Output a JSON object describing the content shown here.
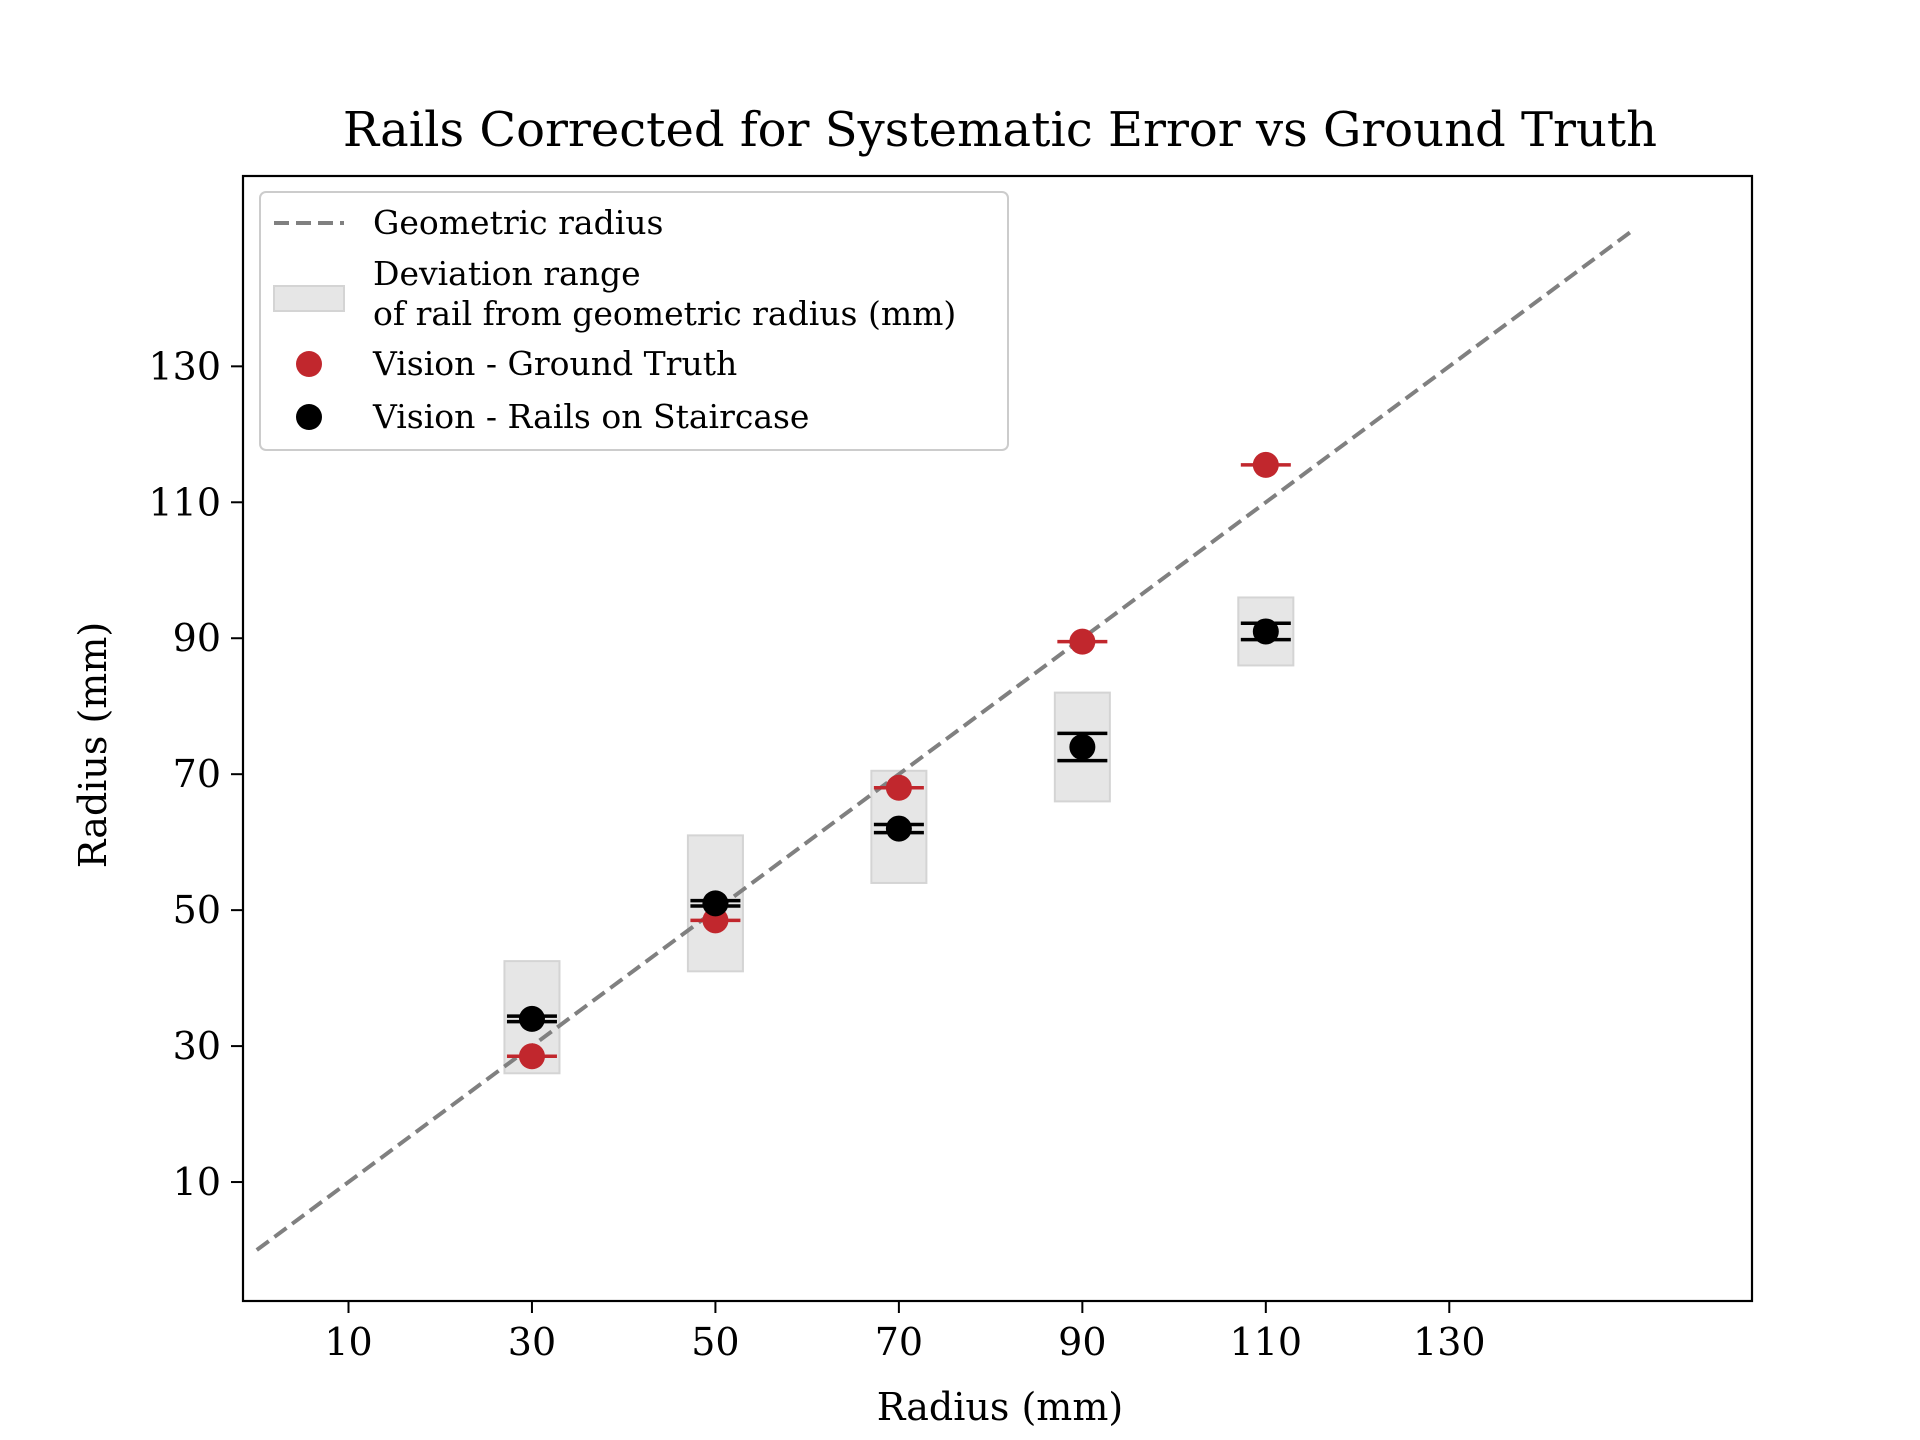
{
  "chart_data": {
    "type": "scatter",
    "title": "Rails Corrected for Systematic Error vs Ground Truth",
    "xlabel": "Radius (mm)",
    "ylabel": "Radius (mm)",
    "xlim": [
      -1.5,
      163
    ],
    "ylim": [
      -7.5,
      158
    ],
    "xticks": [
      10,
      30,
      50,
      70,
      90,
      110,
      130
    ],
    "yticks": [
      10,
      30,
      50,
      70,
      90,
      110,
      130
    ],
    "grid": false,
    "legend_position": "top-left",
    "geometric_line": {
      "name": "Geometric radius",
      "x": [
        0,
        150
      ],
      "y": [
        0,
        150
      ],
      "color": "#808080",
      "style": "dashed"
    },
    "deviation_range": {
      "name": "Deviation range\nof rail from geometric radius (mm)",
      "legend_lines": [
        "Deviation range",
        "of rail from geometric radius (mm)"
      ],
      "color": "#e6e6e6",
      "boxes": [
        {
          "x": 30,
          "width": 6,
          "y_low": 26,
          "y_high": 42.5
        },
        {
          "x": 50,
          "width": 6,
          "y_low": 41,
          "y_high": 61
        },
        {
          "x": 70,
          "width": 6,
          "y_low": 54,
          "y_high": 70.5
        },
        {
          "x": 90,
          "width": 6,
          "y_low": 66,
          "y_high": 82
        },
        {
          "x": 110,
          "width": 6,
          "y_low": 86,
          "y_high": 96
        }
      ]
    },
    "series": [
      {
        "name": "Vision - Ground Truth",
        "color": "#c1272d",
        "x": [
          30,
          50,
          70,
          90,
          110
        ],
        "y": [
          28.5,
          48.5,
          68,
          89.5,
          115.5
        ],
        "err": [
          0.3,
          0.3,
          0.3,
          0.3,
          0.3
        ]
      },
      {
        "name": "Vision - Rails on Staircase",
        "color": "#000000",
        "x": [
          30,
          50,
          70,
          90,
          110
        ],
        "y": [
          34,
          51,
          62,
          74,
          91
        ],
        "err": [
          0.4,
          0.4,
          0.6,
          2.0,
          1.2
        ]
      }
    ]
  }
}
